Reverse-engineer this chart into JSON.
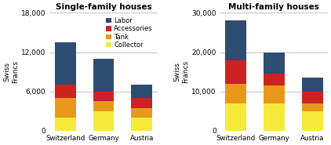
{
  "title1": "Single-family houses",
  "title2": "Multi-family houses",
  "ylabel": "Swiss\nFrancs",
  "categories": [
    "Switzerland",
    "Germany",
    "Austria"
  ],
  "legend_labels": [
    "Labor",
    "Accessories",
    "Tank",
    "Collector"
  ],
  "layer_keys": [
    "Collector",
    "Tank",
    "Accessories",
    "Labor"
  ],
  "colors": {
    "Collector": "#f5ea3a",
    "Tank": "#e8991c",
    "Accessories": "#cc2222",
    "Labor": "#2d4d72"
  },
  "sfh": {
    "Collector": [
      2000,
      3000,
      2000
    ],
    "Tank": [
      3000,
      1500,
      1500
    ],
    "Accessories": [
      2000,
      1500,
      1500
    ],
    "Labor": [
      6500,
      5000,
      2000
    ]
  },
  "mfh": {
    "Collector": [
      7000,
      7000,
      5000
    ],
    "Tank": [
      5000,
      4500,
      2000
    ],
    "Accessories": [
      6000,
      3000,
      3000
    ],
    "Labor": [
      10000,
      5500,
      3500
    ]
  },
  "sfh_ylim": [
    0,
    18000
  ],
  "mfh_ylim": [
    0,
    30000
  ],
  "sfh_yticks": [
    0,
    6000,
    12000,
    18000
  ],
  "mfh_yticks": [
    0,
    10000,
    20000,
    30000
  ],
  "bar_width": 0.55,
  "background": "#ffffff",
  "grid_color": "#aaaaaa"
}
